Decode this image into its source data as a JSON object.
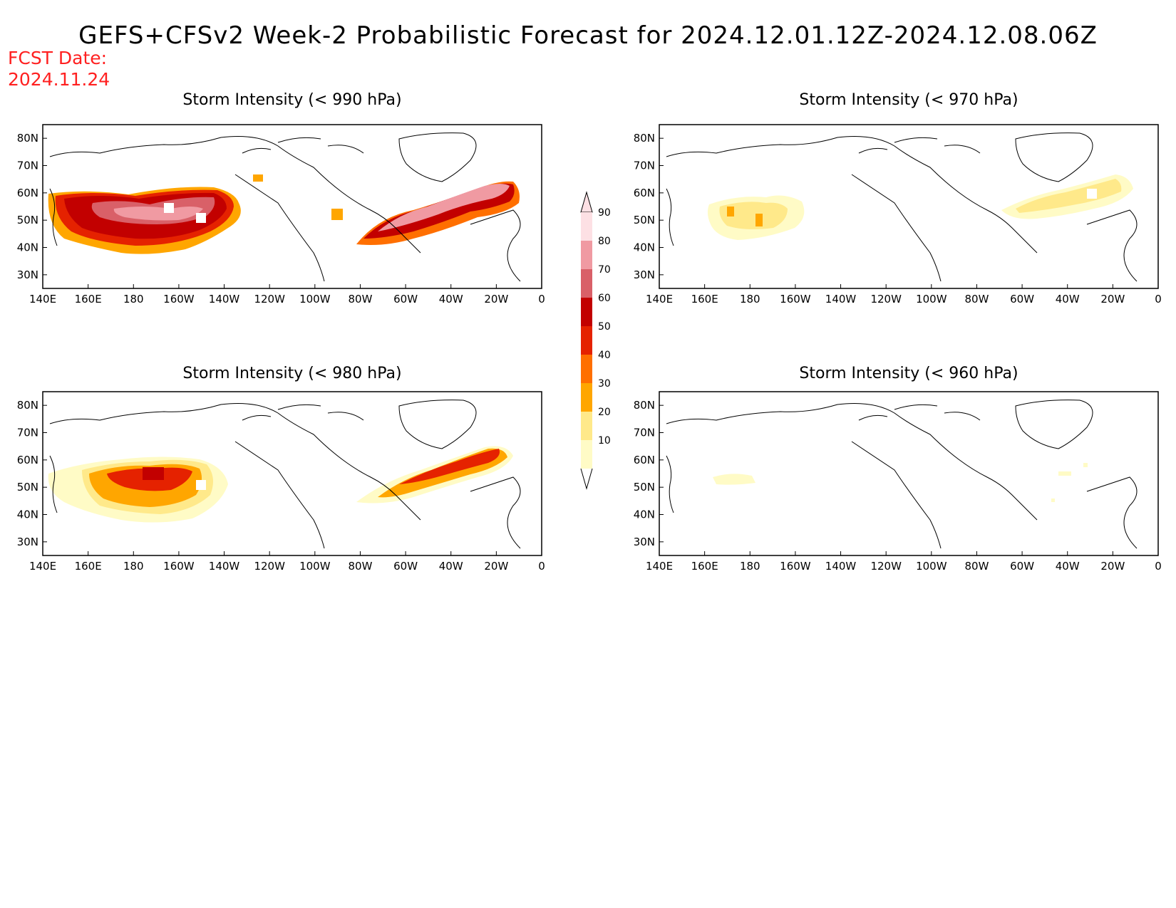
{
  "title": "GEFS+CFSv2 Week-2 Probabilistic Forecast for 2024.12.01.12Z-2024.12.08.06Z",
  "fcst_date": {
    "label": "FCST Date:",
    "value": "2024.11.24"
  },
  "panels": [
    {
      "id": "p990",
      "title": "Storm Intensity (< 990 hPa)"
    },
    {
      "id": "p970",
      "title": "Storm Intensity (< 970 hPa)"
    },
    {
      "id": "p980",
      "title": "Storm Intensity (< 980 hPa)"
    },
    {
      "id": "p960",
      "title": "Storm Intensity (< 960 hPa)"
    }
  ],
  "x_ticks": [
    "140E",
    "160E",
    "180",
    "160W",
    "140W",
    "120W",
    "100W",
    "80W",
    "60W",
    "40W",
    "20W",
    "0"
  ],
  "y_ticks": [
    "80N",
    "70N",
    "60N",
    "50N",
    "40N",
    "30N"
  ],
  "colorbar": {
    "levels": [
      10,
      20,
      30,
      40,
      50,
      60,
      70,
      80,
      90
    ],
    "labels": [
      "10",
      "20",
      "30",
      "40",
      "50",
      "60",
      "70",
      "80",
      "90"
    ],
    "colors": [
      "#fffbc6",
      "#ffe98a",
      "#ffa600",
      "#ff6f00",
      "#e52200",
      "#c20000",
      "#d96068",
      "#f09aa2",
      "#fde0e4"
    ]
  },
  "map_extent": {
    "lon_range": [
      "140E",
      "0"
    ],
    "lat_range": [
      "25N",
      "85N"
    ]
  }
}
